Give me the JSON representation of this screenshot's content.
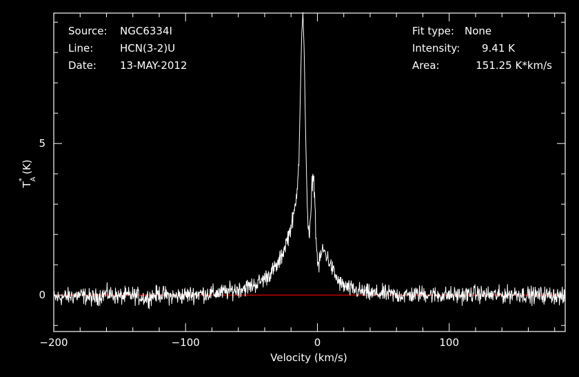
{
  "header": {
    "source_label": "Source:",
    "source_value": "NGC6334I",
    "line_label": "Line:",
    "line_value": "HCN(3-2)U",
    "date_label": "Date:",
    "date_value": "13-MAY-2012",
    "fit_label": "Fit type:",
    "fit_value": "None",
    "intensity_label": "Intensity:",
    "intensity_value": "9.41 K",
    "area_label": "Area:",
    "area_value": "151.25 K*km/s"
  },
  "colors": {
    "background": "#000000",
    "foreground": "#ffffff",
    "baseline": "#cc0000"
  },
  "chart_data": {
    "type": "line",
    "xlabel": "Velocity (km/s)",
    "ylabel_main": "T",
    "ylabel_sup": "*",
    "ylabel_sub": "A",
    "ylabel_unit": "(K)",
    "xlim": [
      -200,
      188
    ],
    "ylim": [
      -1.2,
      9.3
    ],
    "x_ticks": [
      -200,
      -100,
      0,
      100
    ],
    "x_tick_labels": [
      "−200",
      "−100",
      "0",
      "100"
    ],
    "y_ticks": [
      0,
      5
    ],
    "y_tick_labels": [
      "0",
      "5"
    ],
    "baseline": 0,
    "series": [
      {
        "x": [
          -200,
          -190,
          -180,
          -170,
          -160,
          -150,
          -140,
          -130,
          -120,
          -110,
          -100,
          -90,
          -80,
          -70,
          -60,
          -55,
          -50,
          -45,
          -40,
          -35,
          -30,
          -27,
          -24,
          -21,
          -18,
          -16,
          -14,
          -13,
          -12,
          -11,
          -10,
          -9,
          -8,
          -7,
          -6,
          -5,
          -4,
          -3,
          -2,
          -1,
          0,
          1,
          2,
          4,
          6,
          8,
          10,
          12,
          14,
          16,
          18,
          20,
          25,
          30,
          35,
          40,
          50,
          60,
          70,
          80,
          90,
          100,
          110,
          120,
          130,
          140,
          150,
          160,
          170,
          180,
          188
        ],
        "y": [
          -0.1,
          -0.05,
          0.0,
          -0.1,
          0.05,
          -0.05,
          0.0,
          -0.1,
          0.05,
          -0.05,
          0.0,
          0.05,
          0.05,
          0.1,
          0.2,
          0.25,
          0.3,
          0.4,
          0.55,
          0.75,
          1.0,
          1.3,
          1.7,
          2.1,
          2.6,
          3.2,
          4.5,
          6.5,
          8.5,
          9.3,
          8.0,
          5.5,
          3.5,
          2.2,
          1.9,
          2.6,
          3.7,
          4.0,
          3.2,
          1.8,
          1.2,
          0.9,
          1.2,
          1.5,
          1.4,
          1.2,
          1.0,
          0.8,
          0.6,
          0.45,
          0.35,
          0.3,
          0.2,
          0.15,
          0.1,
          0.05,
          0.05,
          0.0,
          0.0,
          0.05,
          0.0,
          0.0,
          0.0,
          0.05,
          0.0,
          0.0,
          0.05,
          0.0,
          0.0,
          0.0,
          -0.1
        ]
      }
    ],
    "grid": false,
    "legend": false
  }
}
